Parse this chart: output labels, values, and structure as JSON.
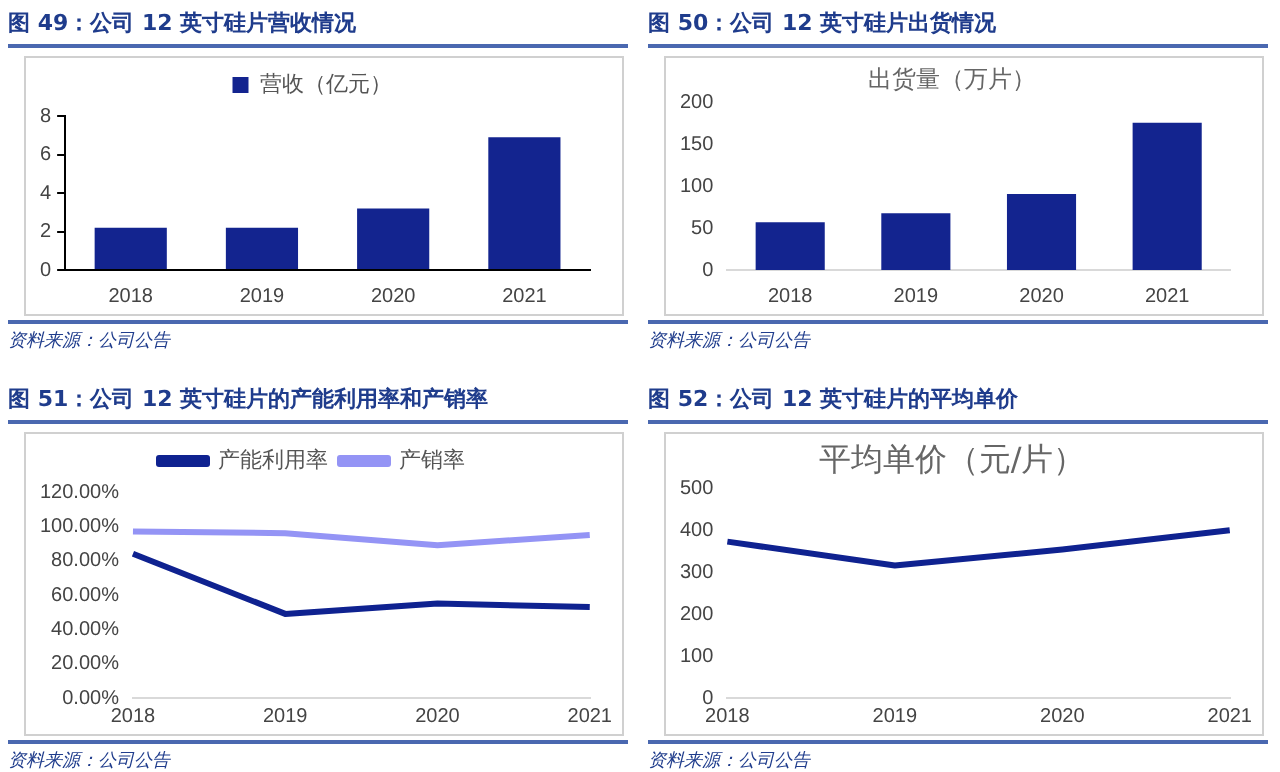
{
  "chart_data": [
    {
      "type": "bar",
      "title": "图 49：公司 12 英寸硅片营收情况",
      "categories": [
        "2018",
        "2019",
        "2020",
        "2021"
      ],
      "series": [
        {
          "name": "营收（亿元）",
          "color": "#13248f",
          "values": [
            2.2,
            2.2,
            3.2,
            6.9
          ]
        }
      ],
      "ylim": [
        0,
        8
      ],
      "yticks": [
        0,
        2,
        4,
        6,
        8
      ],
      "grid": false,
      "legend": "top",
      "annotations": [
        "资料来源：公司公告"
      ]
    },
    {
      "type": "bar",
      "title": "图 50：公司 12 英寸硅片出货情况",
      "subtitle": "出货量（万片）",
      "categories": [
        "2018",
        "2019",
        "2020",
        "2021"
      ],
      "series": [
        {
          "color": "#13248f",
          "values": [
            57,
            68,
            91,
            176
          ]
        }
      ],
      "ylim": [
        0,
        200
      ],
      "yticks": [
        0,
        50,
        100,
        150,
        200
      ],
      "grid": false,
      "annotations": [
        "资料来源：公司公告"
      ]
    },
    {
      "type": "line",
      "title": "图 51：公司 12 英寸硅片的产能利用率和产销率",
      "categories": [
        "2018",
        "2019",
        "2020",
        "2021"
      ],
      "series": [
        {
          "name": "产能利用率",
          "color": "#0f2290",
          "values": [
            84,
            49,
            55,
            53
          ]
        },
        {
          "name": "产销率",
          "color": "#9494f5",
          "values": [
            97,
            96,
            89,
            95
          ]
        }
      ],
      "ylim": [
        0,
        120
      ],
      "yticks": [
        {
          "value": 0,
          "label": "0.00%"
        },
        {
          "value": 20,
          "label": "20.00%"
        },
        {
          "value": 40,
          "label": "40.00%"
        },
        {
          "value": 60,
          "label": "60.00%"
        },
        {
          "value": 80,
          "label": "80.00%"
        },
        {
          "value": 100,
          "label": "100.00%"
        },
        {
          "value": 120,
          "label": "120.00%"
        }
      ],
      "grid": false,
      "legend": "top",
      "marker": "none",
      "line_style": "solid",
      "annotations": [
        "资料来源：公司公告"
      ]
    },
    {
      "type": "line",
      "title": "图 52：公司 12 英寸硅片的平均单价",
      "subtitle": "平均单价（元/片）",
      "categories": [
        "2018",
        "2019",
        "2020",
        "2021"
      ],
      "series": [
        {
          "color": "#0f2290",
          "values": [
            373,
            316,
            354,
            400
          ]
        }
      ],
      "ylim": [
        0,
        500
      ],
      "yticks": [
        0,
        100,
        200,
        300,
        400,
        500
      ],
      "grid": false,
      "marker": "none",
      "line_style": "solid",
      "annotations": [
        "资料来源：公司公告"
      ]
    }
  ]
}
